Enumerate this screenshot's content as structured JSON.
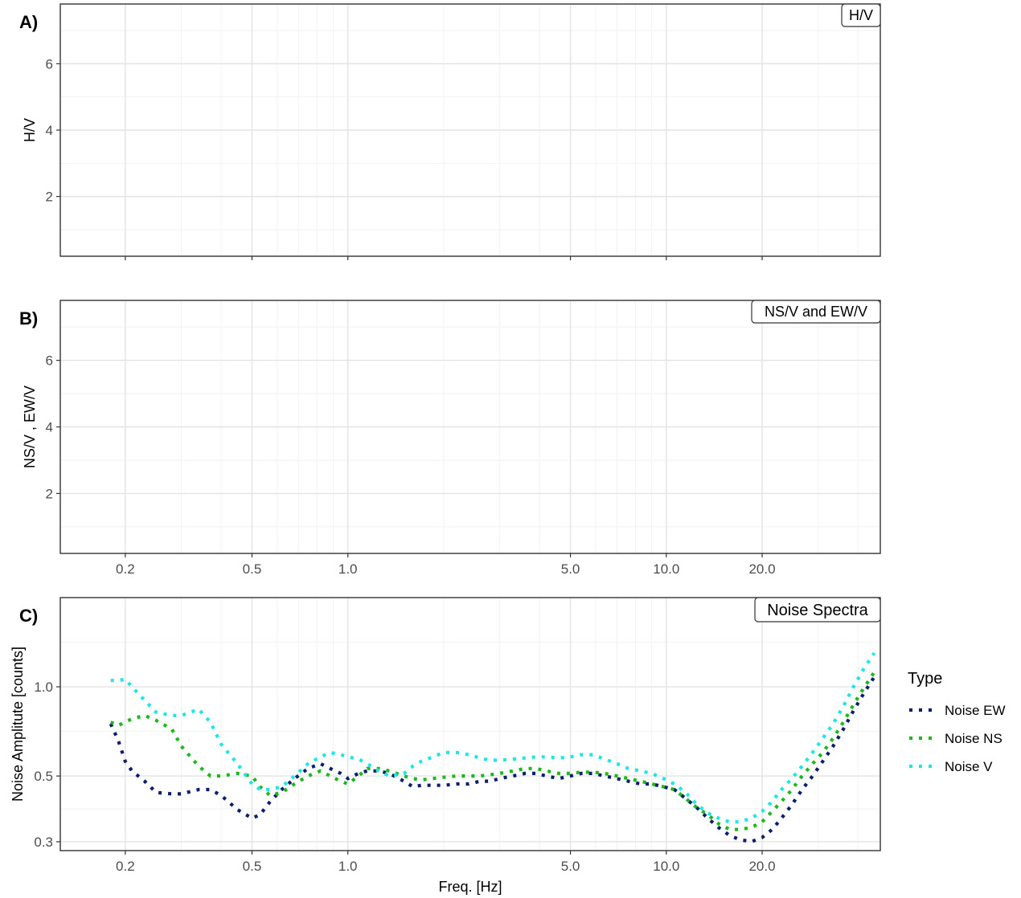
{
  "chart_data": [
    {
      "panel_label": "A)",
      "type": "line",
      "strip": "H/V",
      "ylabel": "H/V",
      "yticks": [
        2,
        4,
        6
      ],
      "ylim": [
        0.2,
        7.8
      ],
      "x_log": true,
      "xlim": [
        0.125,
        47
      ],
      "xticks": [
        0.2,
        0.5,
        1.0,
        5.0,
        10.0,
        20.0
      ],
      "xtick_labels_shown": false,
      "grid": true,
      "series": []
    },
    {
      "panel_label": "B)",
      "type": "line",
      "strip": "NS/V and EW/V",
      "ylabel": "NS/V , EW/V",
      "yticks": [
        2,
        4,
        6
      ],
      "ylim": [
        0.2,
        7.8
      ],
      "x_log": true,
      "xlim": [
        0.125,
        47
      ],
      "xticks": [
        0.2,
        0.5,
        1.0,
        5.0,
        10.0,
        20.0
      ],
      "xtick_labels": [
        "0.2",
        "0.5",
        "1.0",
        "5.0",
        "10.0",
        "20.0"
      ],
      "grid": true,
      "series": []
    },
    {
      "panel_label": "C)",
      "type": "line",
      "strip": "Noise Spectra",
      "xlabel": "Freq. [Hz]",
      "ylabel": "Noise Amplitute [counts]",
      "x_log": true,
      "y_log": true,
      "xlim": [
        0.125,
        47
      ],
      "ylim": [
        0.28,
        2.0
      ],
      "xticks": [
        0.2,
        0.5,
        1.0,
        5.0,
        10.0,
        20.0
      ],
      "xtick_labels": [
        "0.2",
        "0.5",
        "1.0",
        "5.0",
        "10.0",
        "20.0"
      ],
      "yticks": [
        0.3,
        0.5,
        1.0
      ],
      "ytick_labels": [
        "0.3",
        "0.5",
        "1.0"
      ],
      "grid": true,
      "legend": {
        "title": "Type",
        "position": "right"
      },
      "line_style": "dotted",
      "series": [
        {
          "name": "Noise EW",
          "color": "#0b1f6e",
          "x": [
            0.18,
            0.19,
            0.2,
            0.21,
            0.23,
            0.25,
            0.28,
            0.3,
            0.34,
            0.37,
            0.4,
            0.45,
            0.5,
            0.53,
            0.57,
            0.62,
            0.68,
            0.75,
            0.82,
            0.88,
            0.95,
            1.0,
            1.08,
            1.15,
            1.25,
            1.35,
            1.5,
            1.6,
            1.7,
            1.85,
            2.0,
            2.2,
            2.4,
            2.6,
            2.8,
            3.0,
            3.3,
            3.6,
            3.9,
            4.2,
            4.6,
            5.0,
            5.4,
            5.9,
            6.4,
            7.0,
            7.6,
            8.3,
            9.0,
            9.8,
            10.6,
            11.5,
            12.5,
            13.5,
            14.6,
            15.8,
            17.0,
            18.5,
            20.0,
            21.5,
            23.0,
            24.8,
            26.7,
            28.8,
            31.0,
            33.4,
            36.0,
            38.7,
            41.7,
            45.0
          ],
          "y": [
            0.75,
            0.66,
            0.56,
            0.52,
            0.48,
            0.44,
            0.435,
            0.435,
            0.45,
            0.45,
            0.43,
            0.385,
            0.36,
            0.37,
            0.41,
            0.45,
            0.49,
            0.53,
            0.55,
            0.53,
            0.51,
            0.49,
            0.51,
            0.52,
            0.52,
            0.51,
            0.48,
            0.46,
            0.465,
            0.465,
            0.465,
            0.47,
            0.47,
            0.48,
            0.48,
            0.49,
            0.5,
            0.51,
            0.51,
            0.5,
            0.49,
            0.5,
            0.51,
            0.51,
            0.5,
            0.49,
            0.48,
            0.47,
            0.47,
            0.46,
            0.45,
            0.42,
            0.39,
            0.36,
            0.335,
            0.315,
            0.305,
            0.3,
            0.31,
            0.33,
            0.36,
            0.4,
            0.45,
            0.5,
            0.56,
            0.63,
            0.72,
            0.83,
            0.95,
            1.08
          ]
        },
        {
          "name": "Noise NS",
          "color": "#1cb81c",
          "x": [
            0.18,
            0.19,
            0.2,
            0.21,
            0.23,
            0.25,
            0.28,
            0.3,
            0.34,
            0.37,
            0.4,
            0.45,
            0.5,
            0.53,
            0.57,
            0.62,
            0.68,
            0.75,
            0.82,
            0.88,
            0.95,
            1.0,
            1.08,
            1.15,
            1.25,
            1.35,
            1.5,
            1.6,
            1.7,
            1.85,
            2.0,
            2.2,
            2.4,
            2.6,
            2.8,
            3.0,
            3.3,
            3.6,
            3.9,
            4.2,
            4.6,
            5.0,
            5.4,
            5.9,
            6.4,
            7.0,
            7.6,
            8.3,
            9.0,
            9.8,
            10.6,
            11.5,
            12.5,
            13.5,
            14.6,
            15.8,
            17.0,
            18.5,
            20.0,
            21.5,
            23.0,
            24.8,
            26.7,
            28.8,
            31.0,
            33.4,
            36.0,
            38.7,
            41.7,
            45.0
          ],
          "y": [
            0.76,
            0.74,
            0.76,
            0.78,
            0.8,
            0.77,
            0.72,
            0.63,
            0.54,
            0.5,
            0.5,
            0.51,
            0.5,
            0.46,
            0.43,
            0.44,
            0.47,
            0.5,
            0.52,
            0.5,
            0.48,
            0.47,
            0.5,
            0.53,
            0.53,
            0.52,
            0.5,
            0.49,
            0.485,
            0.49,
            0.495,
            0.5,
            0.5,
            0.5,
            0.505,
            0.51,
            0.52,
            0.53,
            0.53,
            0.52,
            0.51,
            0.51,
            0.515,
            0.515,
            0.51,
            0.5,
            0.49,
            0.48,
            0.47,
            0.46,
            0.45,
            0.42,
            0.39,
            0.37,
            0.345,
            0.33,
            0.33,
            0.335,
            0.35,
            0.38,
            0.41,
            0.45,
            0.5,
            0.55,
            0.6,
            0.67,
            0.76,
            0.87,
            0.99,
            1.12
          ]
        },
        {
          "name": "Noise V",
          "color": "#1ee6e6",
          "x": [
            0.18,
            0.19,
            0.2,
            0.21,
            0.23,
            0.25,
            0.28,
            0.3,
            0.34,
            0.37,
            0.4,
            0.45,
            0.5,
            0.53,
            0.57,
            0.62,
            0.68,
            0.75,
            0.82,
            0.88,
            0.95,
            1.0,
            1.08,
            1.15,
            1.25,
            1.35,
            1.5,
            1.6,
            1.7,
            1.85,
            2.0,
            2.2,
            2.4,
            2.6,
            2.8,
            3.0,
            3.3,
            3.6,
            3.9,
            4.2,
            4.6,
            5.0,
            5.4,
            5.9,
            6.4,
            7.0,
            7.6,
            8.3,
            9.0,
            9.8,
            10.6,
            11.5,
            12.5,
            13.5,
            14.6,
            15.8,
            17.0,
            18.5,
            20.0,
            21.5,
            23.0,
            24.8,
            26.7,
            28.8,
            31.0,
            33.4,
            36.0,
            38.7,
            41.7,
            45.0
          ],
          "y": [
            1.05,
            1.05,
            1.06,
            1.0,
            0.9,
            0.82,
            0.8,
            0.8,
            0.84,
            0.76,
            0.64,
            0.55,
            0.47,
            0.45,
            0.45,
            0.46,
            0.5,
            0.55,
            0.58,
            0.6,
            0.59,
            0.58,
            0.57,
            0.55,
            0.52,
            0.5,
            0.51,
            0.54,
            0.56,
            0.58,
            0.6,
            0.6,
            0.59,
            0.575,
            0.565,
            0.565,
            0.57,
            0.575,
            0.58,
            0.58,
            0.575,
            0.58,
            0.59,
            0.59,
            0.57,
            0.55,
            0.53,
            0.52,
            0.51,
            0.49,
            0.47,
            0.44,
            0.4,
            0.375,
            0.36,
            0.35,
            0.35,
            0.36,
            0.38,
            0.41,
            0.45,
            0.49,
            0.54,
            0.6,
            0.67,
            0.75,
            0.86,
            1.0,
            1.15,
            1.3
          ]
        }
      ]
    }
  ]
}
